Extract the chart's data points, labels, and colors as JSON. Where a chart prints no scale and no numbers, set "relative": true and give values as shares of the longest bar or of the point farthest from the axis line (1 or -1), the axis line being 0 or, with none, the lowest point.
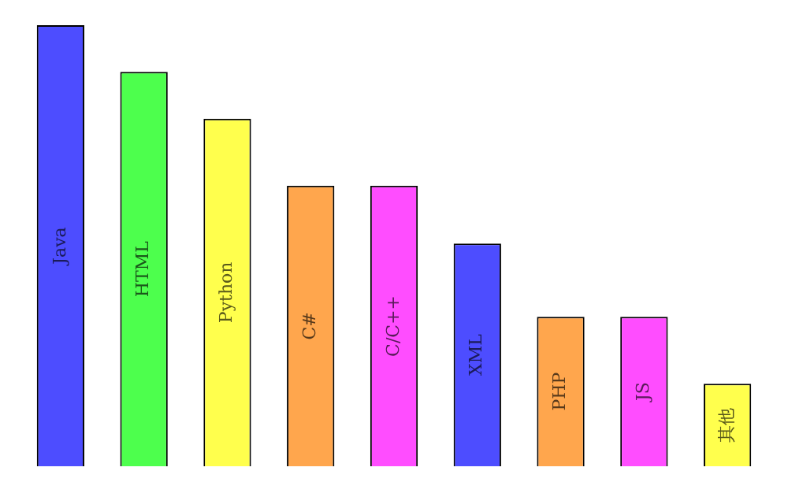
{
  "chart_data": {
    "type": "bar",
    "relative": true,
    "categories": [
      "Java",
      "HTML",
      "Python",
      "C#",
      "C/C++",
      "XML",
      "PHP",
      "JS",
      "其他"
    ],
    "values": [
      1,
      0.894,
      0.788,
      0.636,
      0.636,
      0.505,
      0.339,
      0.339,
      0.187
    ],
    "colors": [
      "#4d4dff",
      "#4dff4d",
      "#ffff4d",
      "#ffa64d",
      "#ff4dff",
      "#4d4dff",
      "#ffa64d",
      "#ff4dff",
      "#ffff4d"
    ],
    "legend": false
  }
}
